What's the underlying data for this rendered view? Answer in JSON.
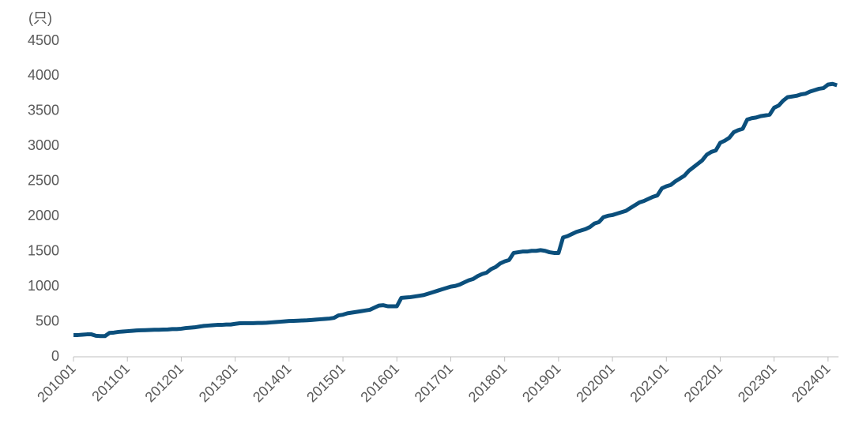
{
  "chart_data": {
    "type": "line",
    "y_label": "(只)",
    "categories": [
      "201001",
      null,
      null,
      null,
      null,
      null,
      null,
      null,
      null,
      null,
      null,
      null,
      "201101",
      null,
      null,
      null,
      null,
      null,
      null,
      null,
      null,
      null,
      null,
      null,
      "201201",
      null,
      null,
      null,
      null,
      null,
      null,
      null,
      null,
      null,
      null,
      null,
      "201301",
      null,
      null,
      null,
      null,
      null,
      null,
      null,
      null,
      null,
      null,
      null,
      "201401",
      null,
      null,
      null,
      null,
      null,
      null,
      null,
      null,
      null,
      null,
      null,
      "201501",
      null,
      null,
      null,
      null,
      null,
      null,
      null,
      null,
      null,
      null,
      null,
      "201601",
      null,
      null,
      null,
      null,
      null,
      null,
      null,
      null,
      null,
      null,
      null,
      "201701",
      null,
      null,
      null,
      null,
      null,
      null,
      null,
      null,
      null,
      null,
      null,
      "201801",
      null,
      null,
      null,
      null,
      null,
      null,
      null,
      null,
      null,
      null,
      null,
      "201901",
      null,
      null,
      null,
      null,
      null,
      null,
      null,
      null,
      null,
      null,
      null,
      "202001",
      null,
      null,
      null,
      null,
      null,
      null,
      null,
      null,
      null,
      null,
      null,
      "202101",
      null,
      null,
      null,
      null,
      null,
      null,
      null,
      null,
      null,
      null,
      null,
      "202201",
      null,
      null,
      null,
      null,
      null,
      null,
      null,
      null,
      null,
      null,
      null,
      "202301",
      null,
      null,
      null,
      null,
      null,
      null,
      null,
      null,
      null,
      null,
      null,
      "202401",
      null,
      null
    ],
    "values": [
      310,
      310,
      315,
      320,
      320,
      300,
      295,
      295,
      340,
      345,
      355,
      360,
      365,
      370,
      375,
      378,
      380,
      382,
      385,
      385,
      388,
      390,
      395,
      395,
      400,
      410,
      415,
      420,
      430,
      440,
      445,
      450,
      455,
      455,
      460,
      460,
      470,
      478,
      480,
      480,
      480,
      482,
      482,
      485,
      490,
      495,
      500,
      505,
      510,
      512,
      515,
      518,
      520,
      525,
      530,
      535,
      540,
      545,
      555,
      590,
      600,
      620,
      630,
      640,
      650,
      660,
      670,
      700,
      730,
      735,
      720,
      720,
      720,
      840,
      845,
      850,
      860,
      870,
      880,
      900,
      920,
      940,
      960,
      980,
      1000,
      1010,
      1030,
      1060,
      1090,
      1110,
      1150,
      1180,
      1200,
      1250,
      1280,
      1330,
      1360,
      1380,
      1480,
      1490,
      1500,
      1500,
      1510,
      1510,
      1520,
      1510,
      1490,
      1480,
      1480,
      1700,
      1720,
      1750,
      1780,
      1800,
      1820,
      1850,
      1900,
      1920,
      1990,
      2010,
      2020,
      2040,
      2060,
      2080,
      2120,
      2160,
      2200,
      2220,
      2250,
      2280,
      2300,
      2400,
      2430,
      2450,
      2500,
      2540,
      2580,
      2650,
      2700,
      2750,
      2800,
      2880,
      2920,
      2940,
      3050,
      3080,
      3120,
      3200,
      3230,
      3250,
      3380,
      3400,
      3410,
      3430,
      3440,
      3450,
      3550,
      3580,
      3650,
      3700,
      3710,
      3720,
      3740,
      3750,
      3780,
      3800,
      3820,
      3830,
      3880,
      3890,
      3870
    ],
    "color": "#0b4f7c",
    "ylim": [
      0,
      4500
    ],
    "yticks": [
      0,
      500,
      1000,
      1500,
      2000,
      2500,
      3000,
      3500,
      4000,
      4500
    ]
  }
}
